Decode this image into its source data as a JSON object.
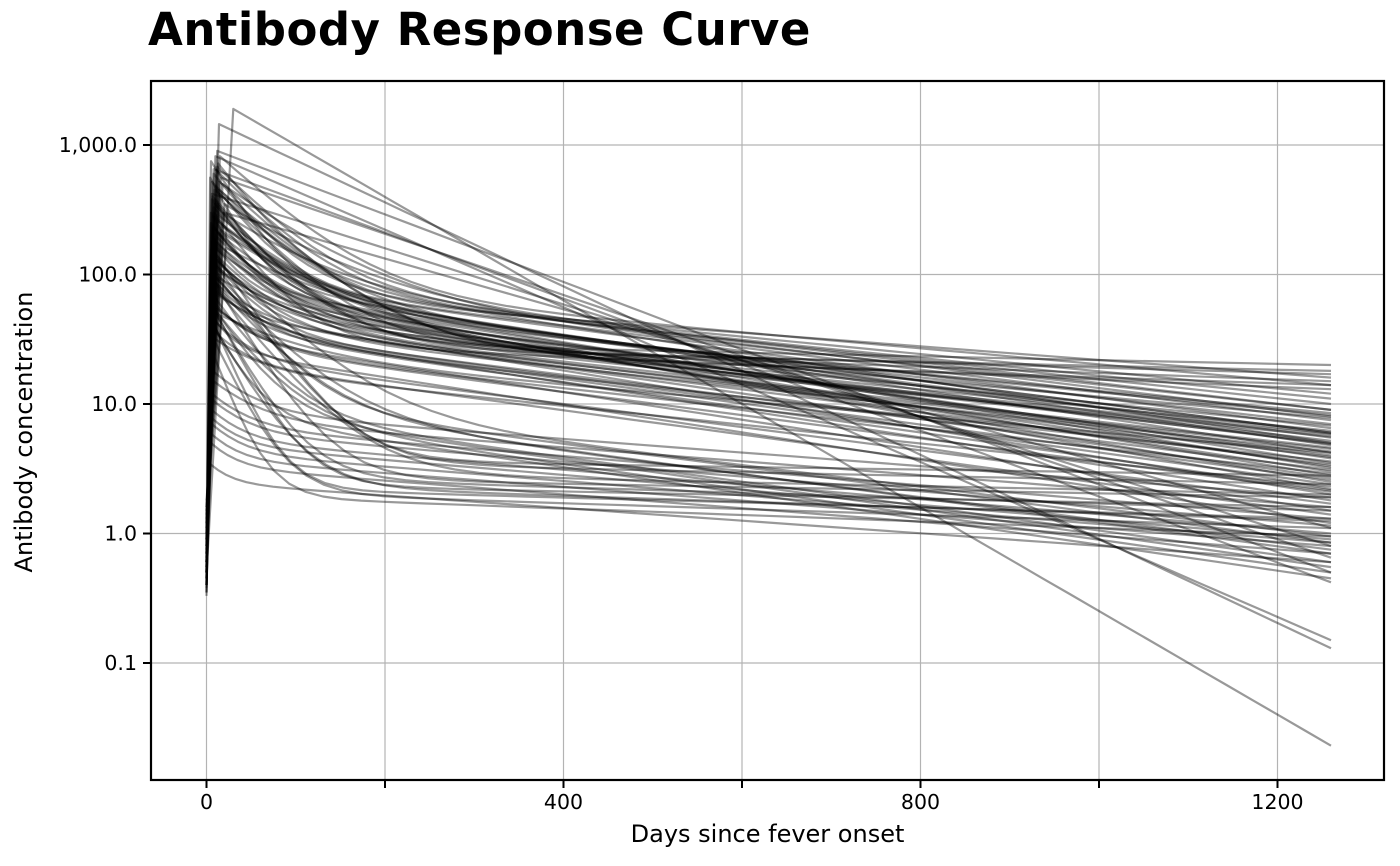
{
  "page": {
    "background": "#ffffff"
  },
  "chart_data": {
    "type": "line",
    "title": "Antibody Response Curve",
    "xlabel": "Days since fever onset",
    "ylabel": "Antibody concentration",
    "yscale": "log",
    "grid": true,
    "legend": false,
    "x_tick_labels": [
      "0",
      "400",
      "800",
      "1200"
    ],
    "x_ticks_labeled_days": [
      0,
      400,
      800,
      1200
    ],
    "x_gridline_days": [
      0,
      200,
      400,
      600,
      800,
      1000,
      1200
    ],
    "y_tick_values": [
      1000,
      100,
      10,
      1,
      0.1
    ],
    "y_tick_labels": [
      "1,000.0",
      "100.0",
      "10.0",
      "1.0",
      "0.1"
    ],
    "xlim_days": [
      -62,
      1320
    ],
    "ylim": [
      0.0125,
      3120
    ],
    "end_day": 1260,
    "n_curves": 100,
    "line_color": "#000000",
    "line_alpha": 0.4,
    "line_width": 2.2,
    "grid_color": "#b3b3b3",
    "frame_color": "#000000",
    "series_model": "each curve: log-linear rise from start_value at day 0 to peak_value at peak_day, then biphasic exponential decay reaching end_value at end_day; fast_fraction 1 means single straight exponential in log space",
    "series_params_format": [
      "start_value",
      "peak_day",
      "peak_value",
      "fast_fraction",
      "fast_half_life_days",
      "end_value"
    ],
    "series": [
      [
        0.5,
        30,
        1900,
        1,
        0,
        0.023
      ],
      [
        0.6,
        14,
        1450,
        1,
        0,
        0.13
      ],
      [
        0.45,
        10,
        820,
        1,
        0,
        0.15
      ],
      [
        0.8,
        12,
        900,
        1,
        0,
        0.5
      ],
      [
        0.6,
        8,
        650,
        1,
        0,
        0.42
      ],
      [
        1.2,
        16,
        560,
        1,
        0,
        0.65
      ],
      [
        0.4,
        6,
        420,
        1,
        0,
        0.8
      ],
      [
        0.9,
        20,
        300,
        1,
        0,
        1.1
      ],
      [
        0.5,
        5,
        750,
        0.9,
        25,
        6
      ],
      [
        0.8,
        8,
        600,
        0.85,
        30,
        9
      ],
      [
        1.1,
        12,
        680,
        0.88,
        40,
        12
      ],
      [
        0.4,
        6,
        520,
        0.8,
        35,
        5
      ],
      [
        0.7,
        10,
        480,
        0.82,
        28,
        7.5
      ],
      [
        1.4,
        15,
        820,
        0.9,
        45,
        14
      ],
      [
        0.6,
        7,
        400,
        0.78,
        22,
        4.2
      ],
      [
        0.9,
        9,
        350,
        0.75,
        30,
        6.5
      ],
      [
        1.6,
        18,
        300,
        0.7,
        50,
        8
      ],
      [
        0.5,
        4,
        560,
        0.86,
        20,
        3.5
      ],
      [
        0.8,
        11,
        640,
        0.87,
        38,
        10
      ],
      [
        1.0,
        13,
        720,
        0.9,
        32,
        16
      ],
      [
        0.45,
        6,
        380,
        0.8,
        26,
        2.8
      ],
      [
        0.7,
        9,
        450,
        0.84,
        42,
        5.5
      ],
      [
        1.2,
        14,
        520,
        0.85,
        55,
        9
      ],
      [
        0.55,
        5,
        300,
        0.72,
        18,
        3.2
      ],
      [
        0.85,
        8,
        280,
        0.7,
        34,
        4.8
      ],
      [
        1.5,
        20,
        350,
        0.78,
        60,
        11
      ],
      [
        0.4,
        7,
        240,
        0.68,
        24,
        2.2
      ],
      [
        0.65,
        10,
        200,
        0.65,
        30,
        3.8
      ],
      [
        1.0,
        12,
        260,
        0.72,
        44,
        6
      ],
      [
        0.5,
        6,
        180,
        0.6,
        20,
        2.5
      ],
      [
        0.75,
        9,
        160,
        0.62,
        36,
        4
      ],
      [
        1.3,
        16,
        220,
        0.7,
        48,
        7
      ],
      [
        0.6,
        5,
        140,
        0.55,
        25,
        3
      ],
      [
        0.9,
        8,
        120,
        0.58,
        32,
        5
      ],
      [
        1.8,
        22,
        160,
        0.65,
        58,
        8.5
      ],
      [
        0.35,
        4,
        100,
        0.5,
        16,
        2
      ],
      [
        0.55,
        7,
        90,
        0.52,
        28,
        3.4
      ],
      [
        0.95,
        11,
        110,
        0.6,
        40,
        5.8
      ],
      [
        0.5,
        6,
        85,
        0.55,
        22,
        1.8
      ],
      [
        0.7,
        9,
        75,
        0.5,
        30,
        2.6
      ],
      [
        1.1,
        13,
        95,
        0.58,
        46,
        4.5
      ],
      [
        0.45,
        5,
        65,
        0.5,
        19,
        1.5
      ],
      [
        0.65,
        8,
        58,
        0.52,
        27,
        2.1
      ],
      [
        1.0,
        12,
        70,
        0.55,
        38,
        3.6
      ],
      [
        0.4,
        4,
        50,
        0.48,
        15,
        1.2
      ],
      [
        0.6,
        7,
        45,
        0.5,
        24,
        1.7
      ],
      [
        0.9,
        10,
        55,
        0.52,
        33,
        2.9
      ],
      [
        1.4,
        17,
        48,
        0.5,
        52,
        4.2
      ],
      [
        0.5,
        6,
        38,
        0.45,
        21,
        1.4
      ],
      [
        0.75,
        9,
        32,
        0.42,
        29,
        2.3
      ],
      [
        0.55,
        5,
        60,
        0.96,
        22,
        1.6
      ],
      [
        0.8,
        8,
        90,
        0.97,
        26,
        1.9
      ],
      [
        0.45,
        6,
        45,
        0.95,
        18,
        1.3
      ],
      [
        0.7,
        10,
        120,
        0.97,
        30,
        2.4
      ],
      [
        1.0,
        12,
        75,
        0.96,
        35,
        2.0
      ],
      [
        0.5,
        5,
        35,
        0.94,
        20,
        1.1
      ],
      [
        0.65,
        7,
        55,
        0.95,
        24,
        1.5
      ],
      [
        0.9,
        9,
        150,
        0.975,
        28,
        2.8
      ],
      [
        0.4,
        4,
        28,
        0.93,
        16,
        0.95
      ],
      [
        0.6,
        8,
        40,
        0.94,
        25,
        1.25
      ],
      [
        0.5,
        6,
        110,
        0.9,
        30,
        0.85
      ],
      [
        0.7,
        9,
        85,
        0.88,
        35,
        0.7
      ],
      [
        0.45,
        5,
        60,
        0.85,
        25,
        0.55
      ],
      [
        0.9,
        12,
        130,
        0.92,
        42,
        0.95
      ],
      [
        0.55,
        7,
        70,
        0.87,
        28,
        0.6
      ],
      [
        0.75,
        10,
        95,
        0.9,
        38,
        0.75
      ],
      [
        0.4,
        4,
        45,
        0.82,
        20,
        0.45
      ],
      [
        0.6,
        8,
        55,
        0.85,
        30,
        0.5
      ],
      [
        1.2,
        15,
        420,
        0.93,
        40,
        17
      ],
      [
        0.9,
        10,
        380,
        0.92,
        35,
        20
      ],
      [
        1.5,
        18,
        500,
        0.94,
        45,
        15
      ],
      [
        0.7,
        8,
        300,
        0.9,
        30,
        13
      ],
      [
        1.0,
        12,
        350,
        0.92,
        38,
        18
      ],
      [
        0.8,
        14,
        450,
        0.94,
        50,
        14
      ],
      [
        0.35,
        4,
        8,
        0.4,
        20,
        0.9
      ],
      [
        0.5,
        6,
        12,
        0.45,
        25,
        1.3
      ],
      [
        0.4,
        5,
        5,
        0.35,
        18,
        0.7
      ],
      [
        0.6,
        8,
        15,
        0.5,
        30,
        1.6
      ],
      [
        0.33,
        3,
        3.5,
        0.3,
        15,
        0.6
      ],
      [
        0.45,
        6,
        9,
        0.42,
        22,
        1.0
      ],
      [
        0.55,
        7,
        18,
        0.52,
        28,
        1.9
      ],
      [
        0.38,
        4,
        6,
        0.38,
        19,
        0.8
      ],
      [
        0.5,
        5,
        11,
        0.45,
        24,
        1.15
      ],
      [
        0.42,
        6,
        7,
        0.4,
        21,
        0.85
      ],
      [
        0.6,
        7,
        130,
        0.72,
        26,
        3.1
      ],
      [
        0.85,
        10,
        170,
        0.75,
        34,
        4.6
      ],
      [
        1.1,
        13,
        210,
        0.78,
        42,
        6.8
      ],
      [
        0.5,
        5,
        155,
        0.7,
        22,
        2.7
      ],
      [
        0.7,
        8,
        190,
        0.74,
        30,
        5.2
      ],
      [
        1.3,
        16,
        240,
        0.8,
        50,
        7.8
      ],
      [
        0.45,
        6,
        115,
        0.68,
        24,
        2.4
      ],
      [
        0.65,
        9,
        145,
        0.7,
        32,
        3.9
      ],
      [
        0.95,
        11,
        175,
        0.76,
        40,
        5.6
      ],
      [
        0.55,
        6,
        105,
        0.66,
        23,
        2.15
      ],
      [
        0.8,
        9,
        135,
        0.72,
        31,
        4.3
      ],
      [
        1.6,
        19,
        205,
        0.78,
        55,
        6.2
      ],
      [
        0.5,
        5,
        250,
        0.76,
        25,
        3.3
      ],
      [
        0.75,
        8,
        330,
        0.82,
        33,
        5.9
      ],
      [
        1.05,
        12,
        290,
        0.8,
        45,
        8.2
      ],
      [
        0.6,
        7,
        230,
        0.75,
        29,
        4.9
      ]
    ]
  }
}
